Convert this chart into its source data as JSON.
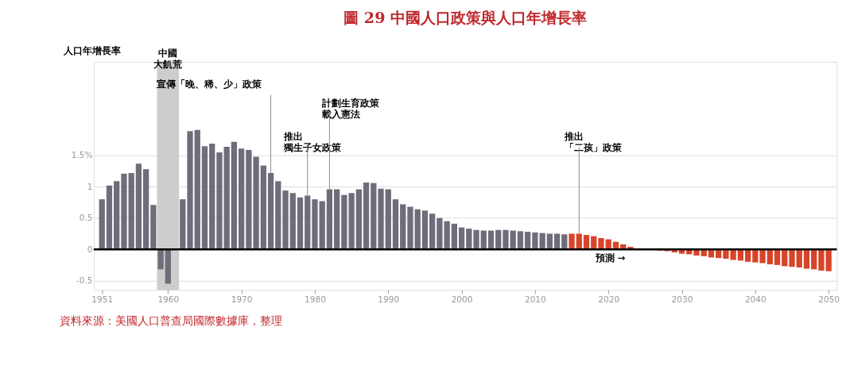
{
  "chart_data": {
    "type": "bar",
    "title": "圖 29 中國人口政策與人口年增長率",
    "ylabel": "人口年增長率",
    "xlim": [
      1950.4,
      2050.6
    ],
    "xticks": [
      1951,
      1960,
      1970,
      1980,
      1990,
      2000,
      2010,
      2020,
      2030,
      2040,
      2050
    ],
    "ylim": [
      -0.65,
      3.0
    ],
    "yticks": [
      -0.5,
      0,
      0.5,
      1,
      {
        "value": 1.5,
        "label": "1.5%"
      }
    ],
    "grid": "y",
    "series": [
      {
        "color": "#6e6d7a",
        "x": [
          1951,
          1952,
          1953,
          1954,
          1955,
          1956,
          1957,
          1958,
          1959,
          1960,
          1961,
          1962,
          1963,
          1964,
          1965,
          1966,
          1967,
          1968,
          1969,
          1970,
          1971,
          1972,
          1973,
          1974,
          1975,
          1976,
          1977,
          1978,
          1979,
          1980,
          1981,
          1982,
          1983,
          1984,
          1985,
          1986,
          1987,
          1988,
          1989,
          1990,
          1991,
          1992,
          1993,
          1994,
          1995,
          1996,
          1997,
          1998,
          1999,
          2000,
          2001,
          2002,
          2003,
          2004,
          2005,
          2006,
          2007,
          2008,
          2009,
          2010,
          2011,
          2012,
          2013,
          2014
        ],
        "values": [
          0.8,
          1.02,
          1.09,
          1.21,
          1.22,
          1.37,
          1.28,
          0.71,
          -0.32,
          -0.55,
          null,
          0.8,
          1.89,
          1.91,
          1.65,
          1.69,
          1.55,
          1.64,
          1.72,
          1.61,
          1.59,
          1.48,
          1.34,
          1.22,
          1.09,
          0.94,
          0.9,
          0.83,
          0.86,
          0.8,
          0.77,
          0.96,
          0.96,
          0.87,
          0.9,
          0.96,
          1.07,
          1.06,
          0.97,
          0.96,
          0.8,
          0.72,
          0.68,
          0.64,
          0.62,
          0.57,
          0.5,
          0.45,
          0.41,
          0.35,
          0.33,
          0.31,
          0.3,
          0.3,
          0.31,
          0.31,
          0.3,
          0.29,
          0.28,
          0.27,
          0.26,
          0.25,
          0.25,
          0.24
        ]
      },
      {
        "color": "#d7442a",
        "x": [
          2015,
          2016,
          2017,
          2018,
          2019,
          2020,
          2021,
          2022,
          2023,
          2024,
          2025,
          2026,
          2027,
          2028,
          2029,
          2030,
          2031,
          2032,
          2033,
          2034,
          2035,
          2036,
          2037,
          2038,
          2039,
          2040,
          2041,
          2042,
          2043,
          2044,
          2045,
          2046,
          2047,
          2048,
          2049,
          2050
        ],
        "values": [
          0.25,
          0.25,
          0.23,
          0.21,
          0.18,
          0.16,
          0.12,
          0.08,
          0.04,
          0.01,
          0.0,
          -0.01,
          -0.02,
          -0.03,
          -0.05,
          -0.07,
          -0.08,
          -0.1,
          -0.11,
          -0.13,
          -0.14,
          -0.15,
          -0.17,
          -0.18,
          -0.2,
          -0.21,
          -0.22,
          -0.24,
          -0.25,
          -0.27,
          -0.28,
          -0.29,
          -0.31,
          -0.32,
          -0.34,
          -0.35
        ]
      }
    ],
    "bands": [
      {
        "axis": "x",
        "from": 1958.5,
        "to": 1961.5,
        "label": "中國大飢荒",
        "color": "#c8c8c8"
      }
    ],
    "ref_lines": [
      {
        "axis": "y",
        "value": 0,
        "color": "#000000"
      }
    ],
    "annotations": [
      {
        "text": "宣傳「晚、稀、少」政策",
        "x": 1974,
        "y": 1.22
      },
      {
        "text": "推出獨生子女政策",
        "x": 1979,
        "y": 0.86
      },
      {
        "text": "計劃生育政策載入憲法",
        "x": 1982,
        "y": 0.96
      },
      {
        "text": "推出「二孩」政策",
        "x": 2016,
        "y": 0.25
      },
      "預測 →",
      "資料來源：美國人口普查局國際數據庫，整理"
    ]
  }
}
